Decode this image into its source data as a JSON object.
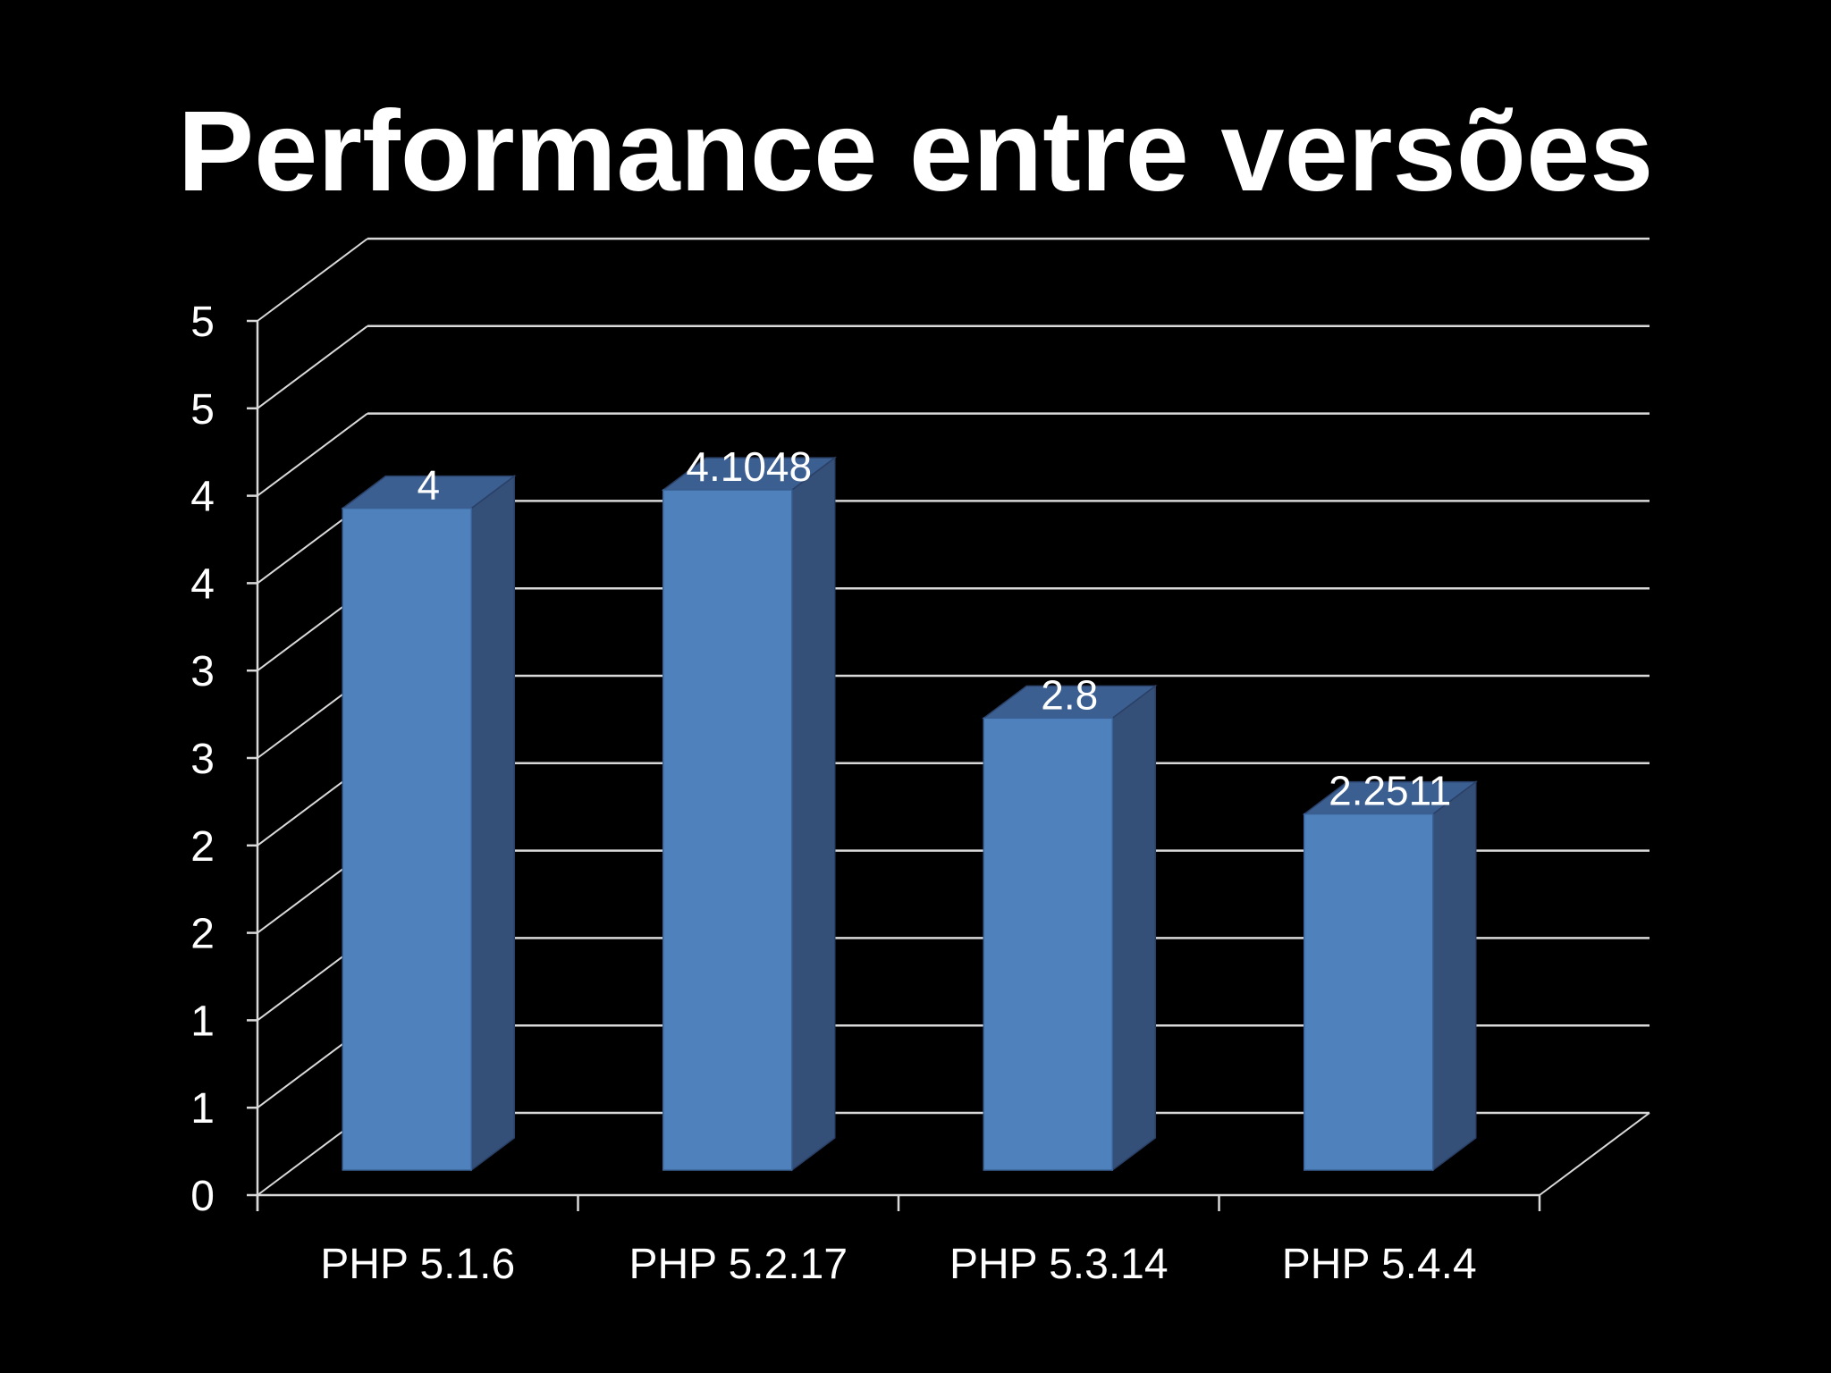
{
  "title": "Performance entre versões",
  "colors": {
    "background": "#000000",
    "bar_front": "#4f81bd",
    "bar_side": "#344f78",
    "bar_top": "#3c5f92",
    "gridline": "#d9d9d9",
    "text": "#ffffff"
  },
  "chart_data": {
    "type": "bar",
    "style": "3d-column",
    "title": "",
    "xlabel": "",
    "ylabel": "",
    "categories": [
      "PHP 5.1.6",
      "PHP 5.2.17",
      "PHP 5.3.14",
      "PHP 5.4.4"
    ],
    "values": [
      4,
      4.1048,
      2.8,
      2.2511
    ],
    "data_labels": [
      "4",
      "4.1048",
      "2.8",
      "2.2511"
    ],
    "ytick_values": [
      0,
      0.5,
      1,
      1.5,
      2,
      2.5,
      3,
      3.5,
      4,
      4.5
    ],
    "ytick_labels": [
      "0",
      "1",
      "1",
      "2",
      "2",
      "3",
      "3",
      "4",
      "4",
      "5"
    ],
    "ylim": [
      0,
      5
    ],
    "grid": true,
    "legend": "none"
  }
}
